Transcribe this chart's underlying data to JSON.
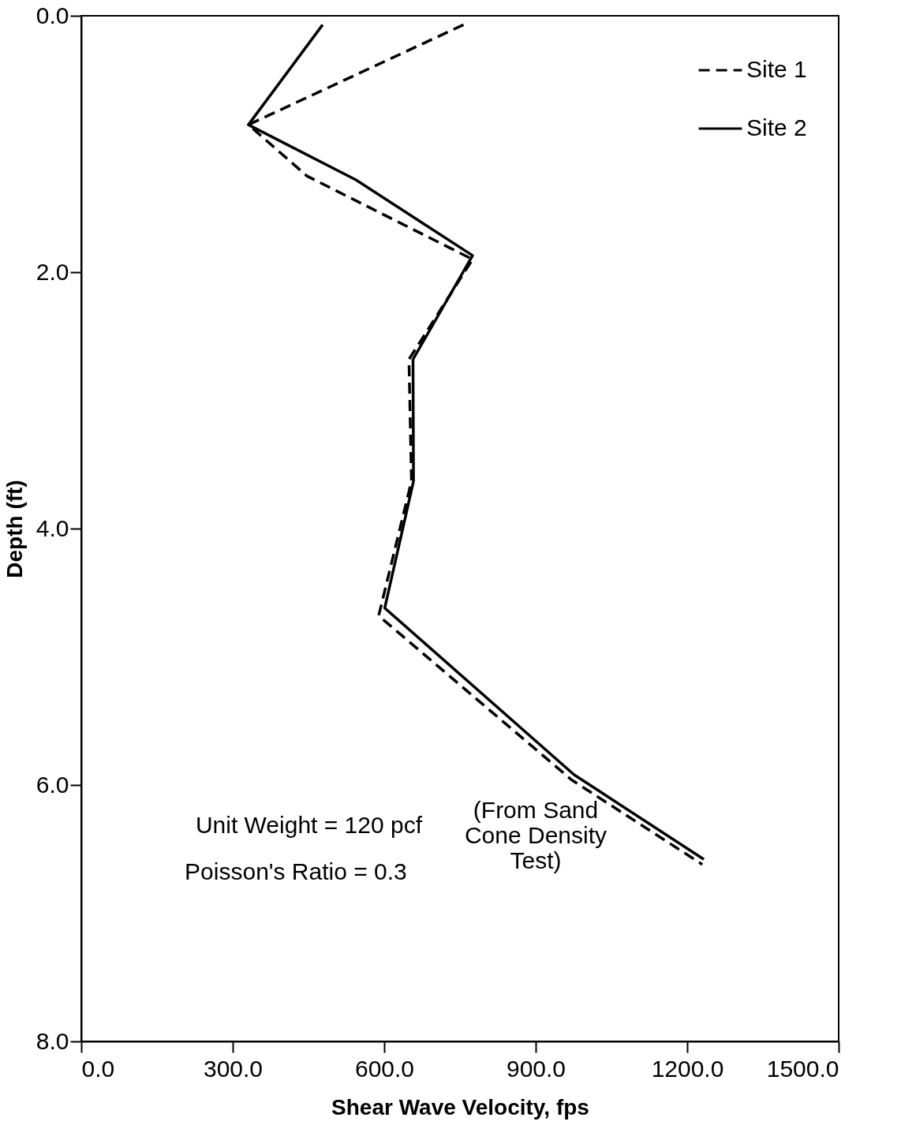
{
  "chart_data": {
    "type": "line",
    "xlabel": "Shear Wave Velocity,  fps",
    "ylabel": "Depth (ft)",
    "xlim": [
      0,
      1500
    ],
    "ylim": [
      8,
      0
    ],
    "xticks": [
      {
        "value": 0,
        "label": "0.0"
      },
      {
        "value": 300,
        "label": "300.0"
      },
      {
        "value": 600,
        "label": "600.0"
      },
      {
        "value": 900,
        "label": "900.0"
      },
      {
        "value": 1200,
        "label": "1200.0"
      },
      {
        "value": 1500,
        "label": "1500.0"
      }
    ],
    "yticks": [
      {
        "value": 0,
        "label": "0.0"
      },
      {
        "value": 2,
        "label": "2.0"
      },
      {
        "value": 4,
        "label": "4.0"
      },
      {
        "value": 6,
        "label": "6.0"
      },
      {
        "value": 8,
        "label": "8.0"
      }
    ],
    "series": [
      {
        "name": "Site 1",
        "color": "#000000",
        "line_style": "dashed",
        "x": [
          757,
          331,
          447,
          775,
          649,
          654,
          589,
          971,
          1230
        ],
        "values": [
          0.07,
          0.85,
          1.25,
          1.9,
          2.68,
          3.63,
          4.68,
          5.96,
          6.62
        ]
      },
      {
        "name": "Site 2",
        "color": "#000000",
        "line_style": "solid",
        "x": [
          478,
          331,
          544,
          775,
          657,
          658,
          601,
          976,
          1233
        ],
        "values": [
          0.07,
          0.85,
          1.28,
          1.87,
          2.68,
          3.63,
          4.62,
          5.92,
          6.58
        ]
      }
    ],
    "annotations": [
      "Unit Weight = 120 pcf",
      "(From Sand Cone Density Test)",
      "Poisson's Ratio = 0.3"
    ],
    "legend": "top right",
    "grid": false,
    "marker": "none"
  }
}
